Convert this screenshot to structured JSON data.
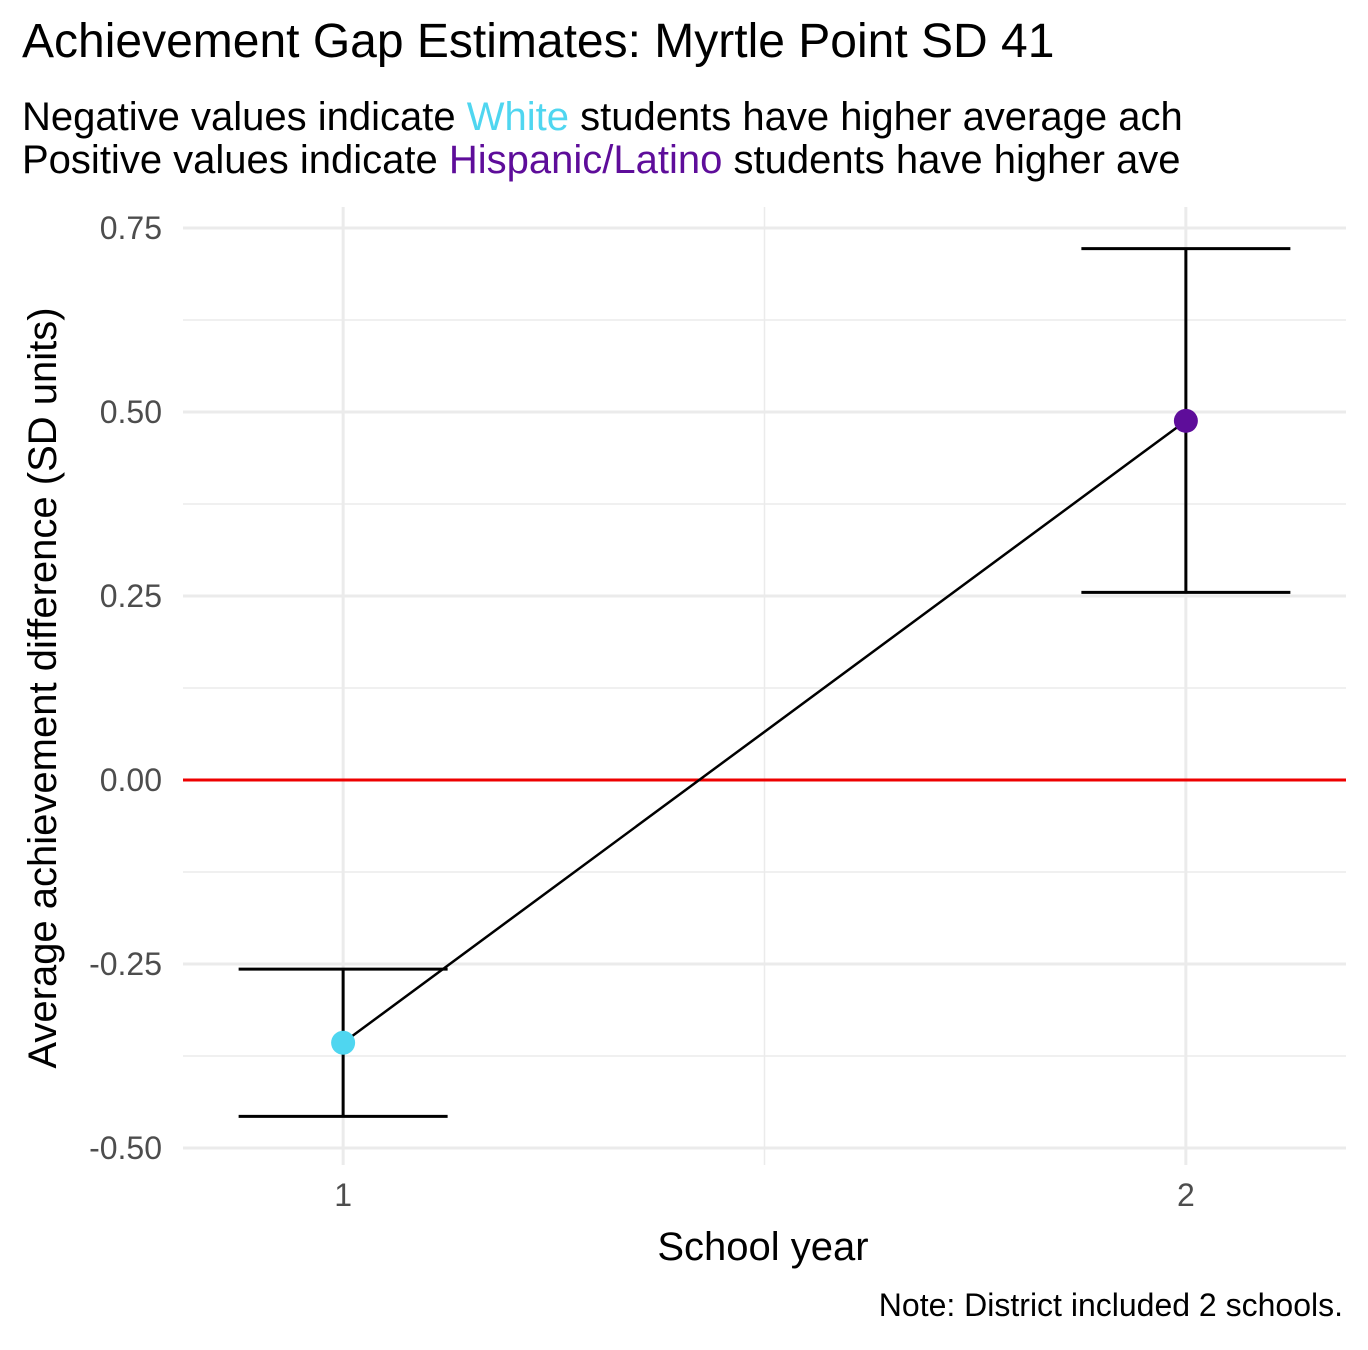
{
  "title": "Achievement Gap Estimates: Myrtle Point SD 41",
  "subtitle": {
    "line1": {
      "before": "Negative values indicate ",
      "group": "White",
      "after": " students have higher average ach"
    },
    "line2": {
      "before": "Positive values indicate ",
      "group": "Hispanic/Latino",
      "after": " students have higher ave"
    }
  },
  "caption": "Note: District included 2 schools.",
  "colors": {
    "white": "#4fd6f0",
    "hispanic": "#5e0d9a",
    "zero_line": "#ee0000",
    "grid": "#ebebeb"
  },
  "chart_data": {
    "type": "line",
    "xlabel": "School year",
    "ylabel": "Average achievement difference (SD units)",
    "x_ticks": [
      "1",
      "2"
    ],
    "y_ticks": [
      "-0.50",
      "-0.25",
      "0.00",
      "0.25",
      "0.50",
      "0.75"
    ],
    "xlim": [
      0.81,
      2.19
    ],
    "ylim": [
      -0.5,
      0.75
    ],
    "grid": true,
    "reference_line": 0,
    "points": [
      {
        "x": 1,
        "y": -0.357,
        "lower": -0.457,
        "upper": -0.257,
        "group": "White"
      },
      {
        "x": 2,
        "y": 0.488,
        "lower": 0.255,
        "upper": 0.722,
        "group": "Hispanic/Latino"
      }
    ]
  }
}
